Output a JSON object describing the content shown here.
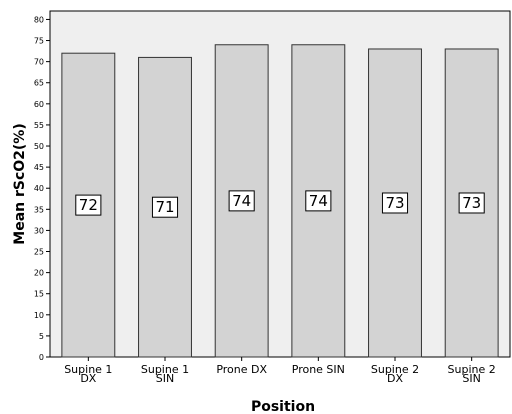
{
  "chart_data": {
    "type": "bar",
    "title": "",
    "xlabel": "Position",
    "ylabel": "Mean rScO2(%)",
    "categories": [
      [
        "Supine 1",
        "DX"
      ],
      [
        "Supine 1",
        "SIN"
      ],
      [
        "Prone DX"
      ],
      [
        "Prone SIN"
      ],
      [
        "Supine 2",
        "DX"
      ],
      [
        "Supine 2",
        "SIN"
      ]
    ],
    "values": [
      72,
      71,
      74,
      74,
      73,
      73
    ],
    "data_labels": [
      "72",
      "71",
      "74",
      "74",
      "73",
      "73"
    ],
    "ylim": [
      0,
      82
    ],
    "yticks": [
      0,
      5,
      10,
      15,
      20,
      25,
      30,
      35,
      40,
      45,
      50,
      55,
      60,
      65,
      70,
      75,
      80
    ],
    "grid": false,
    "legend": "none",
    "colors": {
      "bar_fill": "#d3d3d3",
      "bar_stroke": "#333333",
      "plot_background": "#efefef",
      "axis": "#000000"
    }
  }
}
